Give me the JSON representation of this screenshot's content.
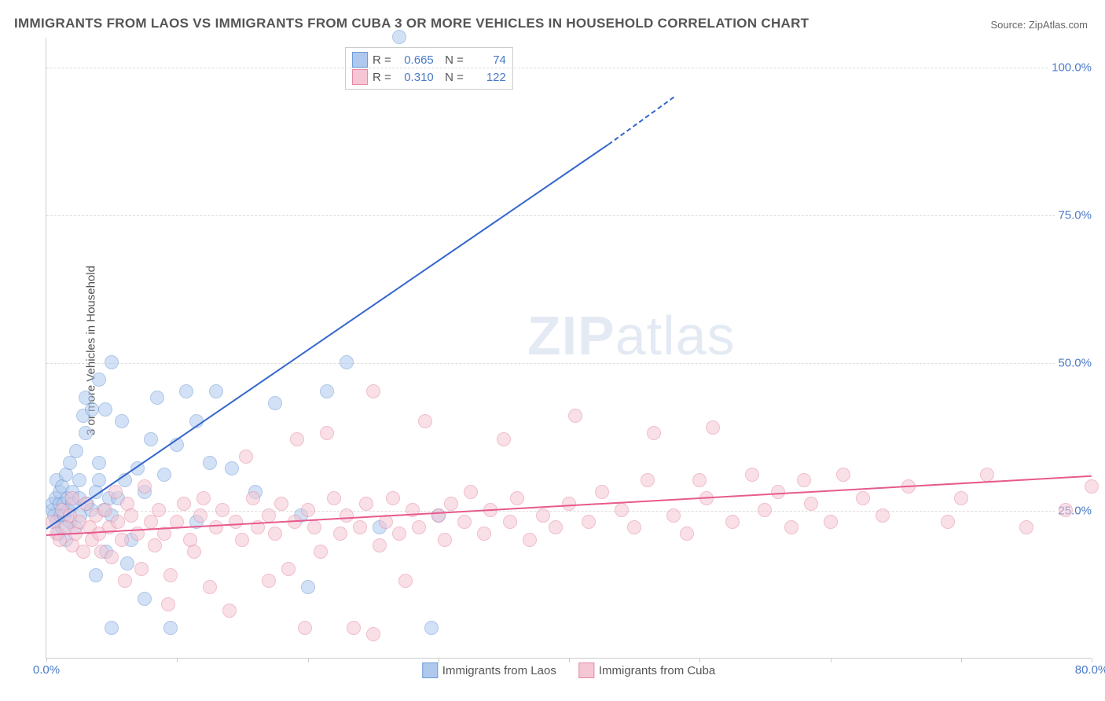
{
  "title": "IMMIGRANTS FROM LAOS VS IMMIGRANTS FROM CUBA 3 OR MORE VEHICLES IN HOUSEHOLD CORRELATION CHART",
  "source": "Source: ZipAtlas.com",
  "ylabel": "3 or more Vehicles in Household",
  "watermark_a": "ZIP",
  "watermark_b": "atlas",
  "chart": {
    "type": "scatter",
    "xlim": [
      0,
      80
    ],
    "ylim": [
      0,
      105
    ],
    "xticks": [
      0,
      10,
      20,
      30,
      40,
      50,
      60,
      70,
      80
    ],
    "xtick_labels": {
      "0": "0.0%",
      "80": "80.0%"
    },
    "yticks": [
      25,
      50,
      75,
      100
    ],
    "ytick_labels": {
      "25": "25.0%",
      "50": "50.0%",
      "75": "75.0%",
      "100": "100.0%"
    },
    "grid_color": "#dddddd",
    "axis_color": "#cccccc",
    "background_color": "#ffffff",
    "marker_radius": 9,
    "marker_opacity": 0.55,
    "series": [
      {
        "name": "Immigrants from Laos",
        "fill": "#aec9ed",
        "stroke": "#6f9ad6",
        "line_color": "#3366cc",
        "R": "0.665",
        "N": "74",
        "trend": {
          "x1": 0,
          "y1": 22,
          "x2": 43,
          "y2": 87,
          "dash_after_x": 43,
          "dash_to_x": 48,
          "dash_to_y": 95
        },
        "points": [
          [
            0.5,
            25
          ],
          [
            0.5,
            26
          ],
          [
            0.6,
            24
          ],
          [
            0.7,
            27
          ],
          [
            0.8,
            23
          ],
          [
            0.8,
            30
          ],
          [
            0.9,
            21
          ],
          [
            1.0,
            26
          ],
          [
            1.0,
            28
          ],
          [
            1.1,
            24
          ],
          [
            1.2,
            22
          ],
          [
            1.2,
            29
          ],
          [
            1.3,
            26
          ],
          [
            1.4,
            24
          ],
          [
            1.5,
            31
          ],
          [
            1.5,
            20
          ],
          [
            1.6,
            27
          ],
          [
            1.7,
            25
          ],
          [
            1.8,
            33
          ],
          [
            1.8,
            23
          ],
          [
            2.0,
            28
          ],
          [
            2.0,
            26
          ],
          [
            2.2,
            22
          ],
          [
            2.3,
            35
          ],
          [
            2.5,
            30
          ],
          [
            2.5,
            27
          ],
          [
            2.6,
            24
          ],
          [
            2.8,
            41
          ],
          [
            3.0,
            44
          ],
          [
            3.0,
            38
          ],
          [
            3.1,
            26
          ],
          [
            3.4,
            25
          ],
          [
            3.5,
            42
          ],
          [
            3.8,
            28
          ],
          [
            3.8,
            14
          ],
          [
            4.0,
            33
          ],
          [
            4.0,
            47
          ],
          [
            4.0,
            30
          ],
          [
            4.4,
            25
          ],
          [
            4.5,
            42
          ],
          [
            4.6,
            18
          ],
          [
            4.8,
            27
          ],
          [
            5.0,
            50
          ],
          [
            5.0,
            24
          ],
          [
            5.0,
            5
          ],
          [
            5.5,
            27
          ],
          [
            5.8,
            40
          ],
          [
            6.0,
            30
          ],
          [
            6.2,
            16
          ],
          [
            6.5,
            20
          ],
          [
            7.0,
            32
          ],
          [
            7.5,
            10
          ],
          [
            7.5,
            28
          ],
          [
            8.0,
            37
          ],
          [
            8.5,
            44
          ],
          [
            9.0,
            31
          ],
          [
            9.5,
            5
          ],
          [
            10.0,
            36
          ],
          [
            10.7,
            45
          ],
          [
            11.5,
            40
          ],
          [
            11.5,
            23
          ],
          [
            12.5,
            33
          ],
          [
            13.0,
            45
          ],
          [
            14.2,
            32
          ],
          [
            16.0,
            28
          ],
          [
            17.5,
            43
          ],
          [
            19.5,
            24
          ],
          [
            20.0,
            12
          ],
          [
            21.5,
            45
          ],
          [
            23.0,
            50
          ],
          [
            25.5,
            22
          ],
          [
            27,
            105
          ],
          [
            29.5,
            5
          ],
          [
            30,
            24
          ]
        ]
      },
      {
        "name": "Immigrants from Cuba",
        "fill": "#f5c6d3",
        "stroke": "#e58aa5",
        "line_color": "#e75a8d",
        "R": "0.310",
        "N": "122",
        "trend": {
          "x1": 0,
          "y1": 21,
          "x2": 80,
          "y2": 31
        },
        "points": [
          [
            0.5,
            23
          ],
          [
            0.8,
            21
          ],
          [
            1.0,
            20
          ],
          [
            1.2,
            25
          ],
          [
            1.5,
            22
          ],
          [
            1.8,
            24
          ],
          [
            2.0,
            19
          ],
          [
            2.0,
            27
          ],
          [
            2.2,
            21
          ],
          [
            2.5,
            23
          ],
          [
            2.8,
            18
          ],
          [
            3.0,
            26
          ],
          [
            3.3,
            22
          ],
          [
            3.5,
            20
          ],
          [
            3.8,
            24
          ],
          [
            4.0,
            21
          ],
          [
            4.2,
            18
          ],
          [
            4.5,
            25
          ],
          [
            4.8,
            22
          ],
          [
            5.0,
            17
          ],
          [
            5.3,
            28
          ],
          [
            5.5,
            23
          ],
          [
            5.8,
            20
          ],
          [
            6.0,
            13
          ],
          [
            6.2,
            26
          ],
          [
            6.5,
            24
          ],
          [
            7.0,
            21
          ],
          [
            7.3,
            15
          ],
          [
            7.5,
            29
          ],
          [
            8.0,
            23
          ],
          [
            8.3,
            19
          ],
          [
            8.6,
            25
          ],
          [
            9.0,
            21
          ],
          [
            9.3,
            9
          ],
          [
            9.5,
            14
          ],
          [
            10.0,
            23
          ],
          [
            10.5,
            26
          ],
          [
            11.0,
            20
          ],
          [
            11.3,
            18
          ],
          [
            11.8,
            24
          ],
          [
            12.0,
            27
          ],
          [
            12.5,
            12
          ],
          [
            13.0,
            22
          ],
          [
            13.5,
            25
          ],
          [
            14.0,
            8
          ],
          [
            14.5,
            23
          ],
          [
            15.0,
            20
          ],
          [
            15.3,
            34
          ],
          [
            15.8,
            27
          ],
          [
            16.2,
            22
          ],
          [
            17.0,
            24
          ],
          [
            17.0,
            13
          ],
          [
            17.5,
            21
          ],
          [
            18.0,
            26
          ],
          [
            18.5,
            15
          ],
          [
            19.0,
            23
          ],
          [
            19.2,
            37
          ],
          [
            19.8,
            5
          ],
          [
            20.0,
            25
          ],
          [
            20.5,
            22
          ],
          [
            21.0,
            18
          ],
          [
            21.5,
            38
          ],
          [
            22.0,
            27
          ],
          [
            22.5,
            21
          ],
          [
            23.0,
            24
          ],
          [
            23.5,
            5
          ],
          [
            24.0,
            22
          ],
          [
            24.5,
            26
          ],
          [
            25.0,
            4
          ],
          [
            25.0,
            45
          ],
          [
            25.5,
            19
          ],
          [
            26.0,
            23
          ],
          [
            26.5,
            27
          ],
          [
            27.0,
            21
          ],
          [
            27.5,
            13
          ],
          [
            28.0,
            25
          ],
          [
            28.5,
            22
          ],
          [
            29.0,
            40
          ],
          [
            30.0,
            24
          ],
          [
            30.5,
            20
          ],
          [
            31.0,
            26
          ],
          [
            32.0,
            23
          ],
          [
            32.5,
            28
          ],
          [
            33.5,
            21
          ],
          [
            34.0,
            25
          ],
          [
            35.0,
            37
          ],
          [
            35.5,
            23
          ],
          [
            36.0,
            27
          ],
          [
            37.0,
            20
          ],
          [
            38.0,
            24
          ],
          [
            39.0,
            22
          ],
          [
            40.0,
            26
          ],
          [
            40.5,
            41
          ],
          [
            41.5,
            23
          ],
          [
            42.5,
            28
          ],
          [
            44.0,
            25
          ],
          [
            45.0,
            22
          ],
          [
            46.0,
            30
          ],
          [
            46.5,
            38
          ],
          [
            48.0,
            24
          ],
          [
            49.0,
            21
          ],
          [
            50.0,
            30
          ],
          [
            50.5,
            27
          ],
          [
            51.0,
            39
          ],
          [
            52.5,
            23
          ],
          [
            54.0,
            31
          ],
          [
            55.0,
            25
          ],
          [
            56.0,
            28
          ],
          [
            57.0,
            22
          ],
          [
            58.0,
            30
          ],
          [
            58.5,
            26
          ],
          [
            60.0,
            23
          ],
          [
            61.0,
            31
          ],
          [
            62.5,
            27
          ],
          [
            64.0,
            24
          ],
          [
            66.0,
            29
          ],
          [
            69.0,
            23
          ],
          [
            70.0,
            27
          ],
          [
            72.0,
            31
          ],
          [
            75.0,
            22
          ],
          [
            78.0,
            25
          ],
          [
            80.0,
            29
          ]
        ]
      }
    ]
  },
  "legend_bottom": [
    {
      "label": "Immigrants from Laos",
      "fill": "#aec9ed",
      "stroke": "#6f9ad6"
    },
    {
      "label": "Immigrants from Cuba",
      "fill": "#f5c6d3",
      "stroke": "#e58aa5"
    }
  ]
}
